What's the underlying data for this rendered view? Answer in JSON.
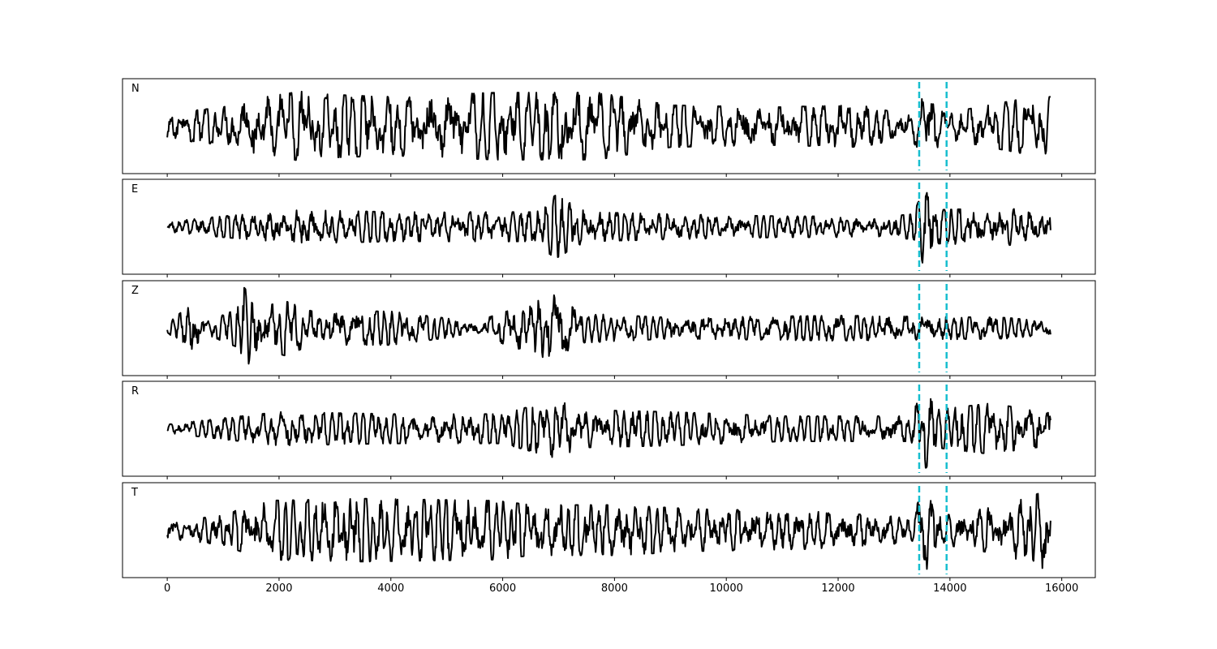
{
  "chart_data": {
    "type": "line",
    "layout": "stacked-panels",
    "x_ticks": [
      0,
      2000,
      4000,
      6000,
      8000,
      10000,
      12000,
      14000,
      16000
    ],
    "x_tick_labels": [
      "0",
      "2000",
      "4000",
      "6000",
      "8000",
      "10000",
      "12000",
      "14000",
      "16000"
    ],
    "xlim": [
      -800,
      16600
    ],
    "y_axis_visible": false,
    "grid": false,
    "line_color": "#000000",
    "marker_color": "#17becf",
    "marker_style": "dashed-vertical",
    "markers_x": [
      13450,
      13940
    ],
    "x_range": [
      0,
      15800
    ],
    "panels": [
      {
        "label": "N",
        "approx_amplitude": 0.85,
        "envelope": [
          [
            0,
            0.3
          ],
          [
            1000,
            0.45
          ],
          [
            1300,
            0.6
          ],
          [
            2500,
            0.85
          ],
          [
            2900,
            0.75
          ],
          [
            4000,
            0.7
          ],
          [
            5900,
            0.8
          ],
          [
            7700,
            0.8
          ],
          [
            9000,
            0.5
          ],
          [
            10800,
            0.45
          ],
          [
            12400,
            0.5
          ],
          [
            13300,
            0.25
          ],
          [
            13550,
            0.9
          ],
          [
            13900,
            0.3
          ],
          [
            15300,
            0.65
          ],
          [
            15800,
            0.7
          ]
        ]
      },
      {
        "label": "E",
        "approx_amplitude": 0.45,
        "envelope": [
          [
            0,
            0.12
          ],
          [
            1000,
            0.25
          ],
          [
            2400,
            0.4
          ],
          [
            4000,
            0.35
          ],
          [
            6500,
            0.35
          ],
          [
            6950,
            0.75
          ],
          [
            7500,
            0.35
          ],
          [
            9000,
            0.3
          ],
          [
            11000,
            0.25
          ],
          [
            12900,
            0.25
          ],
          [
            13350,
            0.3
          ],
          [
            13550,
            1.0
          ],
          [
            13750,
            0.4
          ],
          [
            15000,
            0.45
          ],
          [
            15800,
            0.3
          ]
        ]
      },
      {
        "label": "Z",
        "approx_amplitude": 0.45,
        "envelope": [
          [
            0,
            0.1
          ],
          [
            450,
            0.6
          ],
          [
            700,
            0.15
          ],
          [
            1250,
            0.45
          ],
          [
            1350,
            1.0
          ],
          [
            1700,
            0.5
          ],
          [
            2100,
            0.65
          ],
          [
            2600,
            0.4
          ],
          [
            4000,
            0.4
          ],
          [
            5500,
            0.15
          ],
          [
            6300,
            0.5
          ],
          [
            6950,
            0.8
          ],
          [
            7400,
            0.35
          ],
          [
            9000,
            0.25
          ],
          [
            12000,
            0.3
          ],
          [
            15000,
            0.25
          ],
          [
            15800,
            0.15
          ]
        ]
      },
      {
        "label": "R",
        "approx_amplitude": 0.4,
        "envelope": [
          [
            0,
            0.1
          ],
          [
            1000,
            0.25
          ],
          [
            2000,
            0.4
          ],
          [
            4000,
            0.35
          ],
          [
            6000,
            0.35
          ],
          [
            6950,
            0.7
          ],
          [
            7400,
            0.45
          ],
          [
            9000,
            0.4
          ],
          [
            11000,
            0.3
          ],
          [
            13300,
            0.3
          ],
          [
            13550,
            1.0
          ],
          [
            13750,
            0.45
          ],
          [
            14700,
            0.6
          ],
          [
            15800,
            0.4
          ]
        ]
      },
      {
        "label": "T",
        "approx_amplitude": 0.75,
        "envelope": [
          [
            0,
            0.2
          ],
          [
            1000,
            0.35
          ],
          [
            1700,
            0.7
          ],
          [
            3500,
            0.75
          ],
          [
            5900,
            0.7
          ],
          [
            6500,
            0.6
          ],
          [
            8000,
            0.6
          ],
          [
            9500,
            0.5
          ],
          [
            11500,
            0.45
          ],
          [
            13300,
            0.3
          ],
          [
            13550,
            1.0
          ],
          [
            13900,
            0.35
          ],
          [
            15000,
            0.6
          ],
          [
            15750,
            0.95
          ],
          [
            15800,
            0.4
          ]
        ]
      }
    ]
  }
}
